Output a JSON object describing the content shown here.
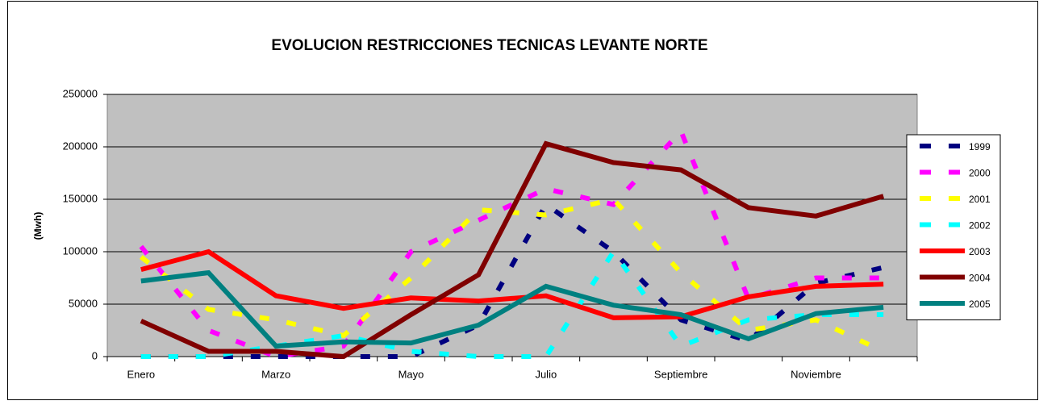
{
  "chart_data": {
    "type": "line",
    "title": "EVOLUCION RESTRICCIONES TECNICAS LEVANTE NORTE",
    "y_label": "(Mwh)",
    "categories": [
      "Enero",
      null,
      "Marzo",
      null,
      "Mayo",
      null,
      "Julio",
      null,
      "Septiembre",
      null,
      "Noviembre",
      null
    ],
    "ylim": [
      0,
      250000
    ],
    "yticks": [
      0,
      50000,
      100000,
      150000,
      200000,
      250000
    ],
    "grid": true,
    "legend": "right",
    "series": [
      {
        "name": "1999",
        "color": "#000080",
        "dashed": true,
        "values": [
          0,
          0,
          0,
          0,
          0,
          30000,
          145000,
          100000,
          35000,
          15000,
          70000,
          85000
        ]
      },
      {
        "name": "2000",
        "color": "#ff00ff",
        "dashed": true,
        "values": [
          105000,
          25000,
          0,
          10000,
          100000,
          130000,
          160000,
          145000,
          215000,
          55000,
          75000,
          75000
        ]
      },
      {
        "name": "2001",
        "color": "#ffff00",
        "dashed": true,
        "values": [
          95000,
          45000,
          35000,
          20000,
          75000,
          140000,
          135000,
          150000,
          80000,
          25000,
          35000,
          5000
        ]
      },
      {
        "name": "2002",
        "color": "#00ffff",
        "dashed": true,
        "values": [
          0,
          0,
          10000,
          20000,
          5000,
          0,
          0,
          100000,
          10000,
          35000,
          40000,
          40000
        ]
      },
      {
        "name": "2003",
        "color": "#ff0000",
        "dashed": false,
        "values": [
          83000,
          100000,
          58000,
          46000,
          56000,
          53000,
          58000,
          37000,
          38000,
          57000,
          67000,
          69000
        ]
      },
      {
        "name": "2004",
        "color": "#800000",
        "dashed": false,
        "values": [
          34000,
          5000,
          5000,
          0,
          40000,
          78000,
          203000,
          185000,
          178000,
          142000,
          134000,
          153000
        ]
      },
      {
        "name": "2005",
        "color": "#008080",
        "dashed": false,
        "values": [
          72000,
          80000,
          10000,
          14000,
          13000,
          30000,
          67000,
          49000,
          40000,
          17000,
          41000,
          47000
        ]
      }
    ]
  }
}
